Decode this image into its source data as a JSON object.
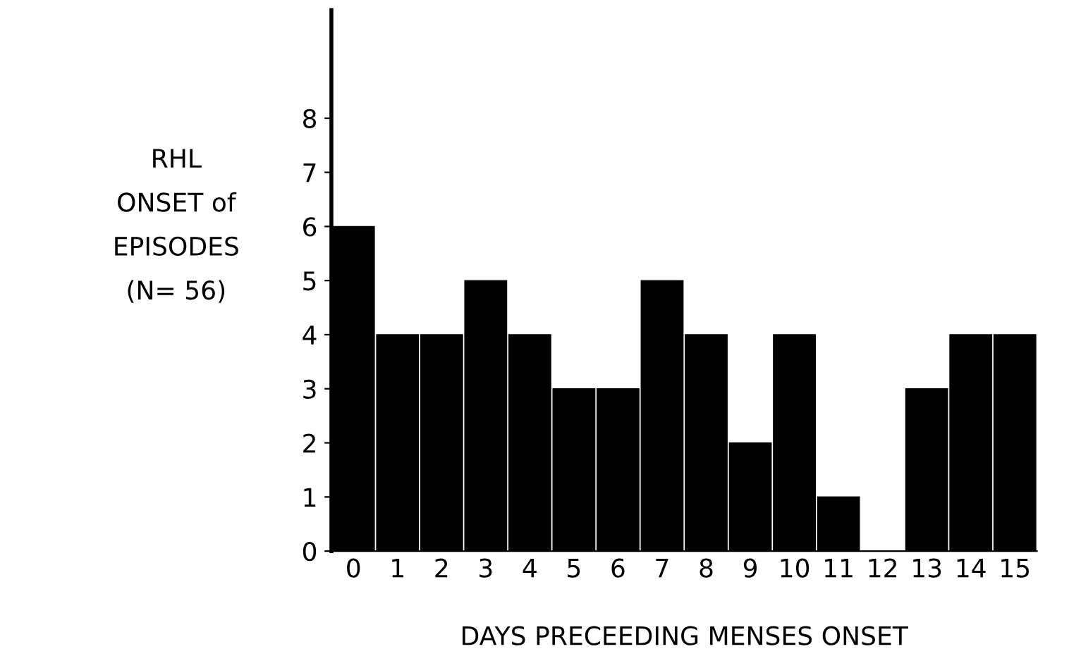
{
  "chart_data": {
    "type": "bar",
    "categories": [
      "0",
      "1",
      "2",
      "3",
      "4",
      "5",
      "6",
      "7",
      "8",
      "9",
      "10",
      "11",
      "12",
      "13",
      "14",
      "15"
    ],
    "values": [
      6,
      4,
      4,
      5,
      4,
      3,
      3,
      5,
      4,
      2,
      4,
      1,
      0,
      3,
      4,
      4
    ],
    "color": "#000000",
    "ylabel": "RHL\nONSET of\nEPISODES\n(N= 56)",
    "xlabel": "DAYS PRECEEDING MENSES ONSET",
    "ylim": [
      0,
      10
    ],
    "yticks": [
      0,
      1,
      2,
      3,
      4,
      5,
      6,
      7,
      8
    ],
    "grid": false,
    "legend": false
  }
}
